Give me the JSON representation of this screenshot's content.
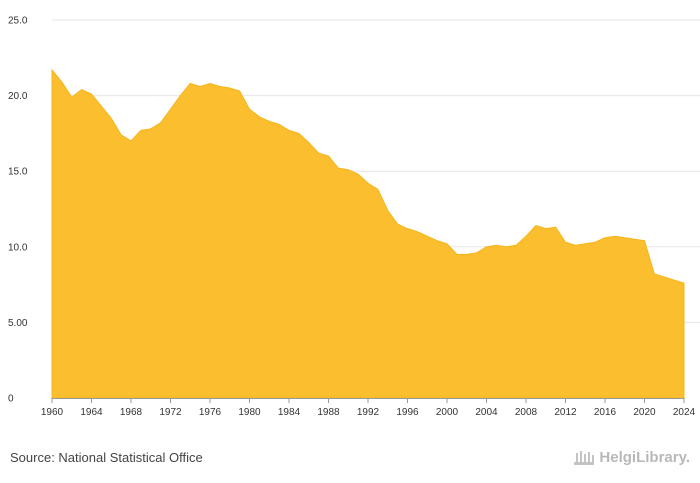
{
  "colors": {
    "area": "#FBBE2E",
    "grid": "#e6e6e6",
    "axis": "#333333"
  },
  "footer": {
    "source": "Source: National Statistical Office",
    "brand": "HelgiLibrary."
  },
  "chart_data": {
    "type": "area",
    "title": "",
    "xlabel": "",
    "ylabel": "",
    "xlim": [
      1960,
      2024
    ],
    "ylim": [
      0,
      25
    ],
    "x_ticks": [
      "1960",
      "1964",
      "1968",
      "1972",
      "1976",
      "1980",
      "1984",
      "1988",
      "1992",
      "1996",
      "2000",
      "2004",
      "2008",
      "2012",
      "2016",
      "2020",
      "2024"
    ],
    "y_ticks": [
      "0",
      "5.00",
      "10.0",
      "15.0",
      "20.0",
      "25.0"
    ],
    "y_tick_values": [
      0,
      5,
      10,
      15,
      20,
      25
    ],
    "grid": true,
    "legend": "none",
    "series": [
      {
        "x": [
          1960,
          1961,
          1962,
          1963,
          1964,
          1965,
          1966,
          1967,
          1968,
          1969,
          1970,
          1971,
          1972,
          1973,
          1974,
          1975,
          1976,
          1977,
          1978,
          1979,
          1980,
          1981,
          1982,
          1983,
          1984,
          1985,
          1986,
          1987,
          1988,
          1989,
          1990,
          1991,
          1992,
          1993,
          1994,
          1995,
          1996,
          1997,
          1998,
          1999,
          2000,
          2001,
          2002,
          2003,
          2004,
          2005,
          2006,
          2007,
          2008,
          2009,
          2010,
          2011,
          2012,
          2013,
          2014,
          2015,
          2016,
          2017,
          2018,
          2019,
          2020,
          2021,
          2022,
          2023,
          2024
        ],
        "values": [
          21.7,
          20.9,
          19.9,
          20.4,
          20.1,
          19.3,
          18.5,
          17.4,
          17.0,
          17.7,
          17.8,
          18.2,
          19.1,
          20.0,
          20.8,
          20.6,
          20.8,
          20.6,
          20.5,
          20.3,
          19.1,
          18.6,
          18.3,
          18.1,
          17.7,
          17.5,
          16.9,
          16.2,
          16.0,
          15.2,
          15.1,
          14.8,
          14.2,
          13.8,
          12.4,
          11.5,
          11.2,
          11.0,
          10.7,
          10.4,
          10.2,
          9.5,
          9.5,
          9.6,
          10.0,
          10.1,
          10.0,
          10.1,
          10.7,
          11.4,
          11.2,
          11.3,
          10.3,
          10.1,
          10.2,
          10.3,
          10.6,
          10.7,
          10.6,
          10.5,
          10.4,
          8.2,
          8.0,
          7.8,
          7.6
        ]
      }
    ]
  }
}
